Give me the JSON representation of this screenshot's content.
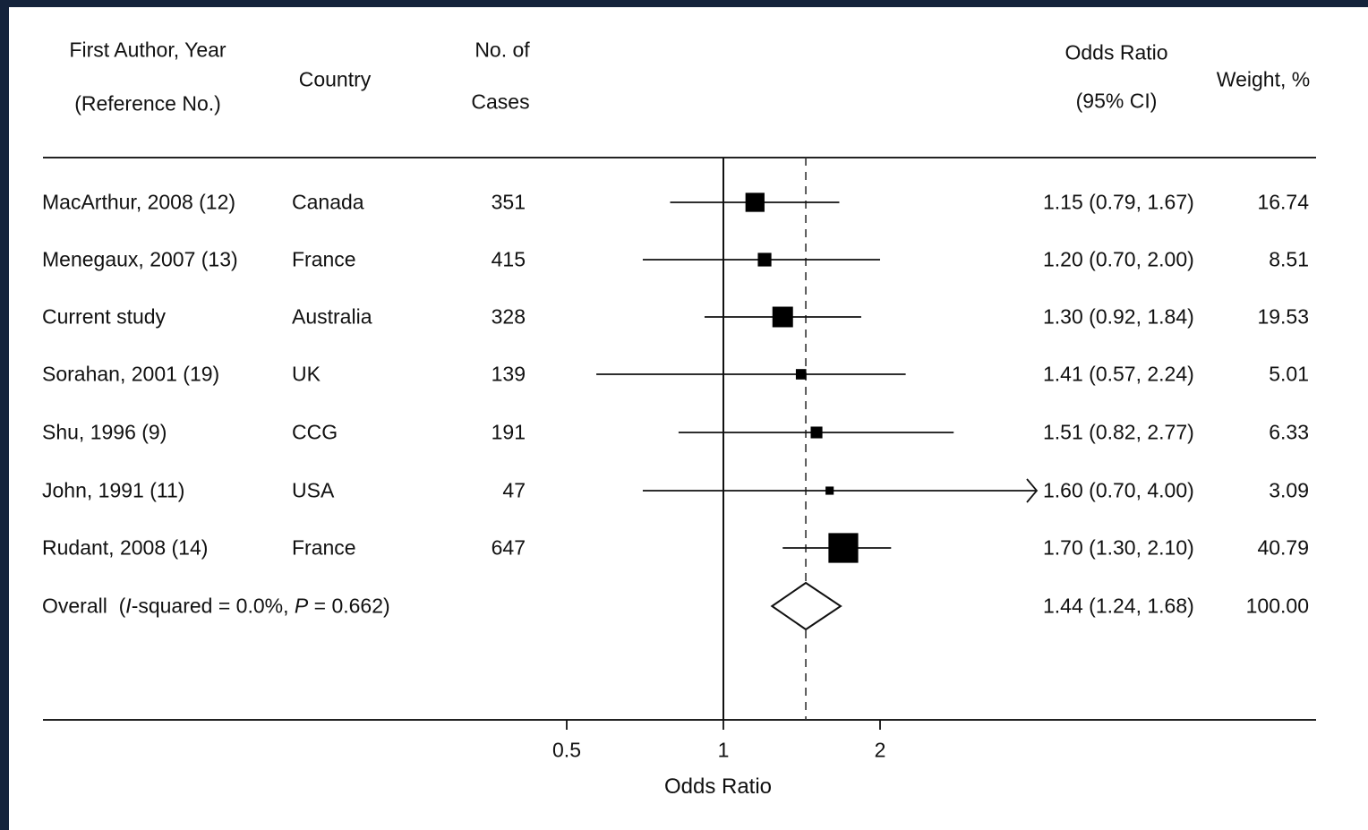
{
  "headers": {
    "author_line1": "First Author, Year",
    "author_line2": "(Reference No.)",
    "country": "Country",
    "cases_line1": "No. of",
    "cases_line2": "Cases",
    "or_line1": "Odds Ratio",
    "or_line2": "(95% CI)",
    "weight": "Weight, %"
  },
  "chart_data": {
    "type": "forest",
    "xlabel": "Odds Ratio",
    "x_scale": "log",
    "xlim": [
      0.5,
      2
    ],
    "xticks": [
      0.5,
      1,
      2
    ],
    "xtick_labels": [
      "0.5",
      "1",
      "2"
    ],
    "null_line": 1,
    "reference_line": 1.44,
    "studies": [
      {
        "author": "MacArthur, 2008 (12)",
        "country": "Canada",
        "cases": "351",
        "or": 1.15,
        "lo": 0.79,
        "hi": 1.67,
        "ci_text": "1.15 (0.79, 1.67)",
        "weight": 16.74,
        "weight_text": "16.74"
      },
      {
        "author": "Menegaux, 2007 (13)",
        "country": "France",
        "cases": "415",
        "or": 1.2,
        "lo": 0.7,
        "hi": 2.0,
        "ci_text": "1.20 (0.70, 2.00)",
        "weight": 8.51,
        "weight_text": "8.51"
      },
      {
        "author": "Current study",
        "country": "Australia",
        "cases": "328",
        "or": 1.3,
        "lo": 0.92,
        "hi": 1.84,
        "ci_text": "1.30 (0.92, 1.84)",
        "weight": 19.53,
        "weight_text": "19.53"
      },
      {
        "author": "Sorahan, 2001 (19)",
        "country": "UK",
        "cases": "139",
        "or": 1.41,
        "lo": 0.57,
        "hi": 2.24,
        "ci_text": "1.41 (0.57, 2.24)",
        "weight": 5.01,
        "weight_text": "5.01"
      },
      {
        "author": "Shu, 1996 (9)",
        "country": "CCG",
        "cases": "191",
        "or": 1.51,
        "lo": 0.82,
        "hi": 2.77,
        "ci_text": "1.51 (0.82, 2.77)",
        "weight": 6.33,
        "weight_text": "6.33"
      },
      {
        "author": "John, 1991 (11)",
        "country": "USA",
        "cases": "47",
        "or": 1.6,
        "lo": 0.7,
        "hi": 4.0,
        "ci_text": "1.60 (0.70, 4.00)",
        "weight": 3.09,
        "weight_text": "3.09",
        "arrow_right": true
      },
      {
        "author": "Rudant, 2008 (14)",
        "country": "France",
        "cases": "647",
        "or": 1.7,
        "lo": 1.3,
        "hi": 2.1,
        "ci_text": "1.70 (1.30, 2.10)",
        "weight": 40.79,
        "weight_text": "40.79"
      }
    ],
    "overall": {
      "label_prefix": "Overall  (",
      "label_i": "I",
      "label_mid": "-squared = 0.0%, ",
      "label_p": "P",
      "label_end": " = 0.662)",
      "or": 1.44,
      "lo": 1.24,
      "hi": 1.68,
      "ci_text": "1.44 (1.24, 1.68)",
      "weight_text": "100.00"
    }
  }
}
